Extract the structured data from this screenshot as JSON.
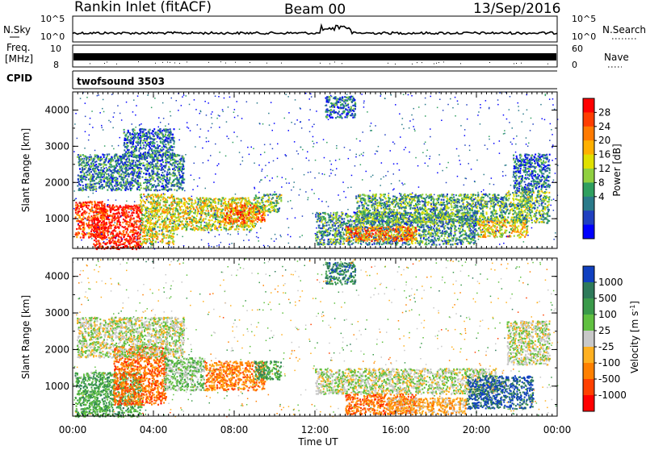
{
  "header": {
    "station": "Rankin Inlet (fitACF)",
    "beam": "Beam 00",
    "date": "13/Sep/2016"
  },
  "strips": {
    "nsky_label": "N.Sky",
    "nsearch_label": "N.Search",
    "count_ticks": [
      "10^5",
      "10^0"
    ],
    "freq_label_1": "Freq.",
    "freq_label_2": "[MHz]",
    "freq_ticks": [
      "10",
      "8"
    ],
    "nave_label": "Nave",
    "nave_ticks": [
      "60",
      "0"
    ],
    "cpid_label": "CPID",
    "cpid_value": "twofsound 3503"
  },
  "time_axis": {
    "label": "Time UT",
    "ticks": [
      "00:00",
      "04:00",
      "08:00",
      "12:00",
      "16:00",
      "20:00",
      "00:00"
    ]
  },
  "chart_data": [
    {
      "type": "heatmap",
      "name": "power",
      "ylabel": "Slant Range [km]",
      "ylim": [
        180,
        4500
      ],
      "yticks": [
        "1000",
        "2000",
        "3000",
        "4000"
      ],
      "xlim_hours": [
        0,
        24
      ],
      "colorbar": {
        "label": "Power [dB]",
        "ticks": [
          "28",
          "24",
          "20",
          "16",
          "12",
          "8",
          "4"
        ],
        "colors": [
          "#ff0000",
          "#ff3d00",
          "#ff7a00",
          "#ffb000",
          "#e0e000",
          "#90d040",
          "#2f9f5f",
          "#2a7a8a",
          "#2040c0",
          "#0000ff"
        ]
      },
      "regions": [
        {
          "t0": 0.1,
          "t1": 1.6,
          "r0": 500,
          "r1": 1500,
          "level": 0.9
        },
        {
          "t0": 1.0,
          "t1": 3.4,
          "r0": 180,
          "r1": 1400,
          "level": 1.0
        },
        {
          "t0": 3.3,
          "t1": 5.0,
          "r0": 300,
          "r1": 1700,
          "level": 0.55
        },
        {
          "t0": 5.0,
          "t1": 9.0,
          "r0": 700,
          "r1": 1600,
          "level": 0.55
        },
        {
          "t0": 7.5,
          "t1": 9.5,
          "r0": 900,
          "r1": 1400,
          "level": 0.8
        },
        {
          "t0": 9.0,
          "t1": 10.3,
          "r0": 1200,
          "r1": 1700,
          "level": 0.4
        },
        {
          "t0": 0.2,
          "t1": 5.5,
          "r0": 1800,
          "r1": 2800,
          "level": 0.25
        },
        {
          "t0": 2.5,
          "t1": 5.0,
          "r0": 2700,
          "r1": 3500,
          "level": 0.2
        },
        {
          "t0": 12.0,
          "t1": 20.0,
          "r0": 300,
          "r1": 1200,
          "level": 0.3
        },
        {
          "t0": 13.5,
          "t1": 17.0,
          "r0": 400,
          "r1": 800,
          "level": 0.8
        },
        {
          "t0": 14.0,
          "t1": 21.5,
          "r0": 900,
          "r1": 1700,
          "level": 0.35
        },
        {
          "t0": 20.0,
          "t1": 22.5,
          "r0": 500,
          "r1": 1000,
          "level": 0.6
        },
        {
          "t0": 21.5,
          "t1": 23.6,
          "r0": 900,
          "r1": 1800,
          "level": 0.4
        },
        {
          "t0": 21.8,
          "t1": 23.6,
          "r0": 1800,
          "r1": 2800,
          "level": 0.2
        },
        {
          "t0": 12.5,
          "t1": 14.0,
          "r0": 3800,
          "r1": 4400,
          "level": 0.2
        }
      ]
    },
    {
      "type": "heatmap",
      "name": "velocity",
      "ylabel": "Slant Range [km]",
      "ylim": [
        180,
        4500
      ],
      "yticks": [
        "1000",
        "2000",
        "3000",
        "4000"
      ],
      "xlim_hours": [
        0,
        24
      ],
      "colorbar": {
        "label": "Velocity [m s",
        "label_sup": "-1",
        "label_end": "]",
        "ticks": [
          "1000",
          "500",
          "100",
          "25",
          "-25",
          "-100",
          "-500",
          "-1000"
        ],
        "colors": [
          "#1040c0",
          "#2e7a5a",
          "#3a9a4a",
          "#60c040",
          "#c8c8c8",
          "#ffb020",
          "#ff8000",
          "#ff4000",
          "#ff0000"
        ]
      },
      "regions": [
        {
          "t0": 0.1,
          "t1": 3.4,
          "r0": 180,
          "r1": 1400,
          "v": 0.4
        },
        {
          "t0": 2.0,
          "t1": 4.6,
          "r0": 500,
          "r1": 2100,
          "v": -0.6
        },
        {
          "t0": 4.5,
          "t1": 6.5,
          "r0": 900,
          "r1": 1800,
          "v": 0.2
        },
        {
          "t0": 6.5,
          "t1": 9.5,
          "r0": 900,
          "r1": 1700,
          "v": -0.5
        },
        {
          "t0": 9.0,
          "t1": 10.3,
          "r0": 1200,
          "r1": 1700,
          "v": 0.5
        },
        {
          "t0": 0.2,
          "t1": 5.5,
          "r0": 1800,
          "r1": 2900,
          "v": 0.05
        },
        {
          "t0": 12.0,
          "t1": 21.0,
          "r0": 800,
          "r1": 1500,
          "v": 0.05
        },
        {
          "t0": 13.5,
          "t1": 17.0,
          "r0": 250,
          "r1": 800,
          "v": -0.6
        },
        {
          "t0": 15.5,
          "t1": 19.5,
          "r0": 250,
          "r1": 700,
          "v": -0.3
        },
        {
          "t0": 19.5,
          "t1": 22.8,
          "r0": 400,
          "r1": 1300,
          "v": 0.9
        },
        {
          "t0": 21.5,
          "t1": 23.6,
          "r0": 1600,
          "r1": 2800,
          "v": 0.05
        },
        {
          "t0": 12.5,
          "t1": 14.0,
          "r0": 3800,
          "r1": 4400,
          "v": 0.7
        }
      ]
    }
  ]
}
